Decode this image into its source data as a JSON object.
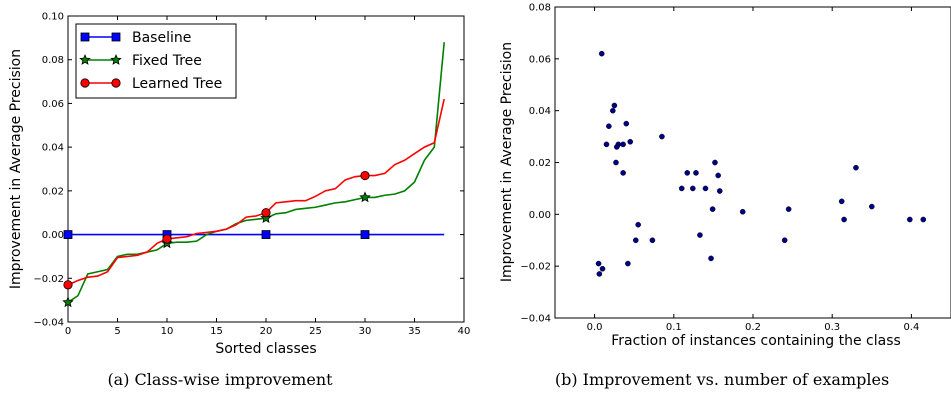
{
  "chart_data": [
    {
      "type": "line",
      "caption": "(a) Class-wise improvement",
      "xlabel": "Sorted classes",
      "ylabel": "Improvement in Average Precision",
      "xlim": [
        0,
        40
      ],
      "ylim": [
        -0.04,
        0.1
      ],
      "xticks": [
        "0",
        "5",
        "10",
        "15",
        "20",
        "25",
        "30",
        "35",
        "40"
      ],
      "yticks": [
        "−0.04",
        "−0.02",
        "0.00",
        "0.02",
        "0.04",
        "0.06",
        "0.08",
        "0.10"
      ],
      "legend_position": "top-left",
      "series": [
        {
          "name": "Baseline",
          "color": "#0000ff",
          "marker": "square",
          "marker_every": 10,
          "x": [
            0,
            38
          ],
          "y": [
            0.0,
            0.0
          ]
        },
        {
          "name": "Fixed Tree",
          "color": "#008000",
          "marker": "star",
          "marker_every": 10,
          "x": [
            0,
            1,
            2,
            3,
            4,
            5,
            6,
            7,
            8,
            9,
            10,
            11,
            12,
            13,
            14,
            15,
            16,
            17,
            18,
            19,
            20,
            21,
            22,
            23,
            24,
            25,
            26,
            27,
            28,
            29,
            30,
            31,
            32,
            33,
            34,
            35,
            36,
            37,
            38
          ],
          "y": [
            -0.031,
            -0.028,
            -0.018,
            -0.017,
            -0.016,
            -0.01,
            -0.009,
            -0.009,
            -0.008,
            -0.007,
            -0.004,
            -0.0035,
            -0.0035,
            -0.003,
            0.0,
            0.0015,
            0.0025,
            0.005,
            0.0065,
            0.007,
            0.0075,
            0.0095,
            0.01,
            0.0115,
            0.012,
            0.0125,
            0.0135,
            0.0145,
            0.015,
            0.016,
            0.017,
            0.017,
            0.018,
            0.0185,
            0.02,
            0.024,
            0.034,
            0.04,
            0.088
          ]
        },
        {
          "name": "Learned Tree",
          "color": "#ff0000",
          "marker": "circle",
          "marker_every": 10,
          "x": [
            0,
            1,
            2,
            3,
            4,
            5,
            6,
            7,
            8,
            9,
            10,
            11,
            12,
            13,
            14,
            15,
            16,
            17,
            18,
            19,
            20,
            21,
            22,
            23,
            24,
            25,
            26,
            27,
            28,
            29,
            30,
            31,
            32,
            33,
            34,
            35,
            36,
            37,
            38
          ],
          "y": [
            -0.023,
            -0.021,
            -0.0195,
            -0.019,
            -0.017,
            -0.0105,
            -0.01,
            -0.0095,
            -0.008,
            -0.004,
            -0.002,
            -0.0015,
            -0.001,
            0.0005,
            0.001,
            0.0015,
            0.0025,
            0.0045,
            0.008,
            0.0085,
            0.01,
            0.0145,
            0.015,
            0.0155,
            0.0155,
            0.0175,
            0.02,
            0.021,
            0.025,
            0.0265,
            0.027,
            0.027,
            0.028,
            0.032,
            0.034,
            0.037,
            0.04,
            0.042,
            0.062
          ]
        }
      ]
    },
    {
      "type": "scatter",
      "caption": "(b) Improvement vs. number of examples",
      "xlabel": "Fraction of instances containing the class",
      "ylabel": "Improvement in Average Precision",
      "xlim": [
        -0.05,
        0.45
      ],
      "ylim": [
        -0.04,
        0.08
      ],
      "xticks": [
        "0.0",
        "0.1",
        "0.2",
        "0.3",
        "0.4"
      ],
      "xtick_values": [
        0.0,
        0.1,
        0.2,
        0.3,
        0.4
      ],
      "yticks": [
        "−0.04",
        "−0.02",
        "0.00",
        "0.02",
        "0.04",
        "0.06",
        "0.08"
      ],
      "color": "#000080",
      "points": [
        [
          0.009,
          0.062
        ],
        [
          0.025,
          0.042
        ],
        [
          0.023,
          0.04
        ],
        [
          0.018,
          0.034
        ],
        [
          0.04,
          0.035
        ],
        [
          0.036,
          0.027
        ],
        [
          0.015,
          0.027
        ],
        [
          0.03,
          0.027
        ],
        [
          0.028,
          0.026
        ],
        [
          0.045,
          0.028
        ],
        [
          0.027,
          0.02
        ],
        [
          0.036,
          0.016
        ],
        [
          0.085,
          0.03
        ],
        [
          0.005,
          -0.019
        ],
        [
          0.01,
          -0.021
        ],
        [
          0.006,
          -0.023
        ],
        [
          0.042,
          -0.019
        ],
        [
          0.055,
          -0.004
        ],
        [
          0.052,
          -0.01
        ],
        [
          0.073,
          -0.01
        ],
        [
          0.117,
          0.016
        ],
        [
          0.128,
          0.016
        ],
        [
          0.11,
          0.01
        ],
        [
          0.124,
          0.01
        ],
        [
          0.14,
          0.01
        ],
        [
          0.152,
          0.02
        ],
        [
          0.156,
          0.015
        ],
        [
          0.158,
          0.009
        ],
        [
          0.149,
          0.002
        ],
        [
          0.133,
          -0.008
        ],
        [
          0.147,
          -0.017
        ],
        [
          0.187,
          0.001
        ],
        [
          0.245,
          0.002
        ],
        [
          0.24,
          -0.01
        ],
        [
          0.312,
          0.005
        ],
        [
          0.315,
          -0.002
        ],
        [
          0.33,
          0.018
        ],
        [
          0.35,
          0.003
        ],
        [
          0.398,
          -0.002
        ],
        [
          0.415,
          -0.002
        ]
      ]
    }
  ]
}
